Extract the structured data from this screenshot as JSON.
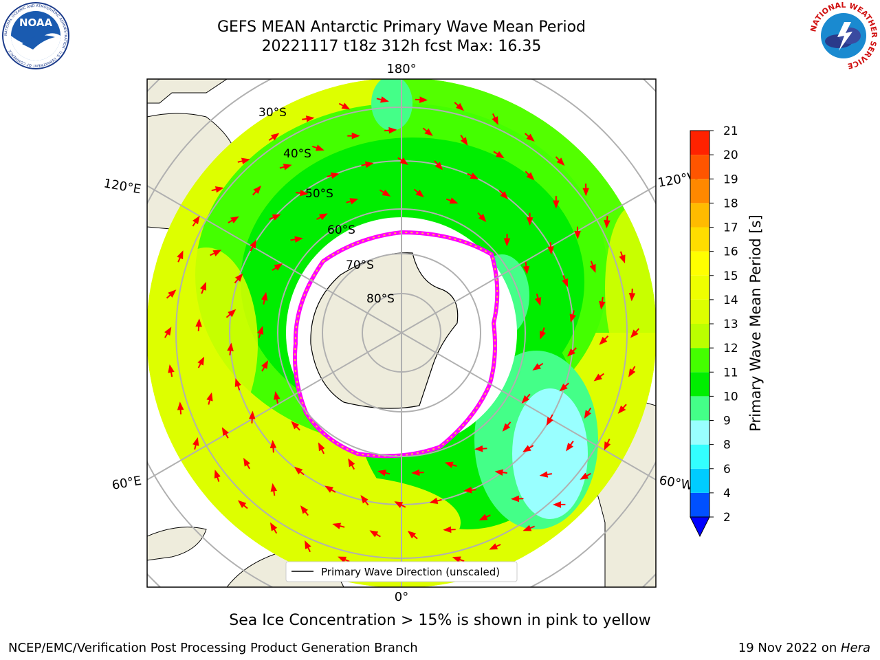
{
  "title": {
    "line1": "GEFS MEAN Antarctic Primary Wave Mean Period",
    "line2": "20221117 t18z 312h fcst   Max: 16.35"
  },
  "logos": {
    "left": {
      "name": "noaa-logo",
      "text": "NOAA",
      "ring_text": "NATIONAL OCEANIC AND ATMOSPHERIC ADMINISTRATION · U.S. DEPARTMENT OF COMMERCE"
    },
    "right": {
      "name": "nws-logo",
      "ring_text": "NATIONAL WEATHER SERVICE"
    }
  },
  "map": {
    "projection": "south-polar-stereographic",
    "longitude_labels": {
      "top": "180°",
      "bottom": "0°",
      "upper_left": "120°E",
      "upper_right": "120°W",
      "lower_left": "60°E",
      "lower_right": "60°W"
    },
    "latitude_labels": [
      "30°S",
      "40°S",
      "50°S",
      "60°S",
      "70°S",
      "80°S"
    ],
    "legend": "Primary Wave Direction (unscaled)",
    "colors": {
      "land": "#eeecdc",
      "ice": "#ffffff",
      "ice_edge": [
        "#ff00ff",
        "#ff7fbf",
        "#ffbf3f"
      ],
      "arrow": "#ff0000"
    }
  },
  "colorbar": {
    "label": "Primary Wave Mean Period [s]",
    "ticks": [
      "2",
      "4",
      "6",
      "8",
      "9",
      "10",
      "11",
      "12",
      "13",
      "14",
      "15",
      "16",
      "17",
      "18",
      "19",
      "20",
      "21"
    ],
    "colors": [
      "#0050ff",
      "#00ccff",
      "#33ffff",
      "#99ffff",
      "#44ff88",
      "#00ee00",
      "#44ff00",
      "#bbff00",
      "#ddff00",
      "#eeff00",
      "#ffff00",
      "#ffdd00",
      "#ffbb00",
      "#ff8800",
      "#ff5500",
      "#ff2200"
    ],
    "extend_color": "#0000ff"
  },
  "note": "Sea Ice Concentration > 15% is shown in pink to yellow",
  "footer": {
    "left": "NCEP/EMC/Verification Post Processing Product Generation Branch",
    "right_date": "19 Nov 2022 on ",
    "right_machine": "Hera"
  }
}
